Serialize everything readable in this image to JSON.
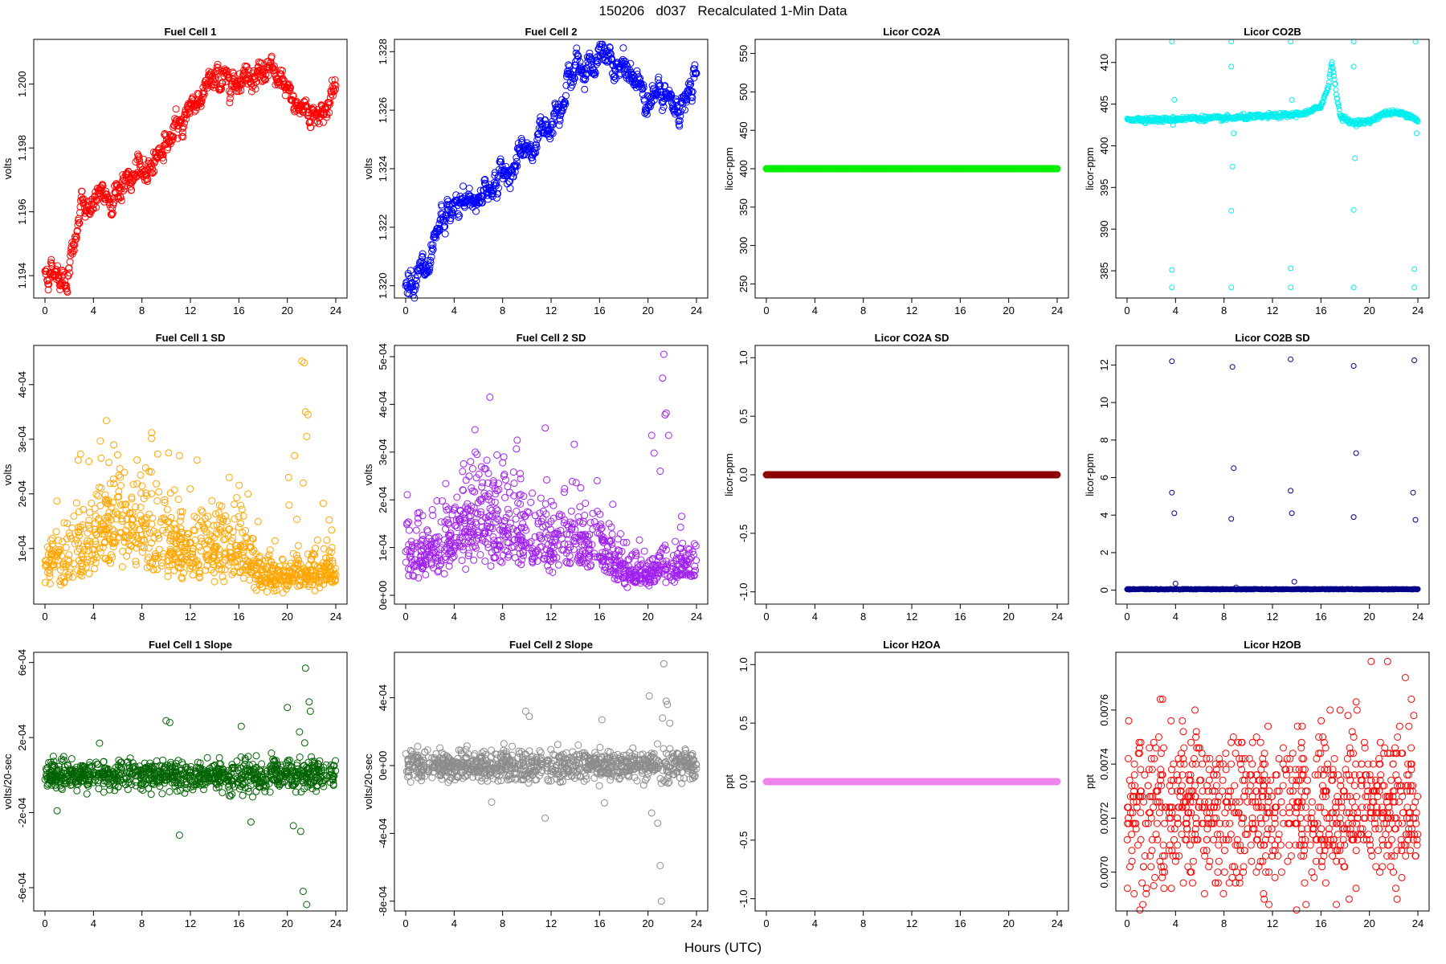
{
  "title": "150206   d037   Recalculated 1-Min Data",
  "x_caption": "Hours (UTC)",
  "chart_data": [
    {
      "id": "fc1",
      "type": "scatter",
      "title": "Fuel Cell 1",
      "ylabel": "volts",
      "color": "#ff0000",
      "xlim": [
        0,
        24
      ],
      "ylim": [
        1.1935,
        1.2012
      ],
      "xticks": [
        "0",
        "4",
        "8",
        "12",
        "16",
        "20",
        "24"
      ],
      "yticks": [
        "1.194",
        "1.196",
        "1.198",
        "1.200"
      ],
      "gen": {
        "kind": "walk",
        "anchors": [
          [
            0,
            1.1941
          ],
          [
            1,
            1.1942
          ],
          [
            1.8,
            1.1939
          ],
          [
            2.5,
            1.195
          ],
          [
            3,
            1.1961
          ],
          [
            4,
            1.1963
          ],
          [
            5,
            1.1964
          ],
          [
            6,
            1.1967
          ],
          [
            8,
            1.1972
          ],
          [
            9,
            1.1977
          ],
          [
            10,
            1.1982
          ],
          [
            11,
            1.1985
          ],
          [
            12,
            1.1994
          ],
          [
            13,
            1.1997
          ],
          [
            14,
            1.2001
          ],
          [
            15,
            1.2002
          ],
          [
            16,
            1.2003
          ],
          [
            17,
            1.2004
          ],
          [
            18,
            1.2004
          ],
          [
            19,
            1.2002
          ],
          [
            20,
            1.1996
          ],
          [
            21,
            1.1993
          ],
          [
            22,
            1.1991
          ],
          [
            23,
            1.1992
          ],
          [
            24,
            1.1998
          ]
        ],
        "noise": 0.00025,
        "n": 700,
        "msize": 4
      }
    },
    {
      "id": "fc2",
      "type": "scatter",
      "title": "Fuel Cell 2",
      "ylabel": "volts",
      "color": "#0000ff",
      "xlim": [
        0,
        24
      ],
      "ylim": [
        1.3198,
        1.3282
      ],
      "xticks": [
        "0",
        "4",
        "8",
        "12",
        "16",
        "20",
        "24"
      ],
      "yticks": [
        "1.320",
        "1.322",
        "1.324",
        "1.326",
        "1.328"
      ],
      "gen": {
        "kind": "walk",
        "anchors": [
          [
            0,
            1.3202
          ],
          [
            1,
            1.3205
          ],
          [
            2,
            1.3203
          ],
          [
            3,
            1.3221
          ],
          [
            4,
            1.3226
          ],
          [
            5,
            1.3228
          ],
          [
            6,
            1.3231
          ],
          [
            7,
            1.3234
          ],
          [
            8,
            1.3238
          ],
          [
            9,
            1.3241
          ],
          [
            10,
            1.3246
          ],
          [
            11,
            1.325
          ],
          [
            12,
            1.3258
          ],
          [
            13,
            1.3268
          ],
          [
            14,
            1.3274
          ],
          [
            15,
            1.3276
          ],
          [
            16,
            1.3277
          ],
          [
            17,
            1.3276
          ],
          [
            18,
            1.3273
          ],
          [
            19,
            1.327
          ],
          [
            20,
            1.3266
          ],
          [
            21,
            1.3264
          ],
          [
            22,
            1.3261
          ],
          [
            23,
            1.3262
          ],
          [
            24,
            1.327
          ]
        ],
        "noise": 0.0003,
        "n": 700,
        "msize": 4
      }
    },
    {
      "id": "co2a",
      "type": "scatter",
      "title": "Licor CO2A",
      "ylabel": "licor-ppm",
      "color": "#00ee00",
      "xlim": [
        0,
        24
      ],
      "ylim": [
        240,
        560
      ],
      "xticks": [
        "0",
        "4",
        "8",
        "12",
        "16",
        "20",
        "24"
      ],
      "yticks": [
        "250",
        "300",
        "350",
        "400",
        "450",
        "500",
        "550"
      ],
      "gen": {
        "kind": "flat",
        "value": 400,
        "n": 400,
        "msize": 4
      }
    },
    {
      "id": "co2b",
      "type": "scatter",
      "title": "Licor CO2B",
      "ylabel": "licor-ppm",
      "color": "#00eeee",
      "xlim": [
        0,
        24
      ],
      "ylim": [
        382.5,
        412
      ],
      "xticks": [
        "0",
        "4",
        "8",
        "12",
        "16",
        "20",
        "24"
      ],
      "yticks": [
        "385",
        "390",
        "395",
        "400",
        "405",
        "410"
      ],
      "gen": {
        "kind": "co2b",
        "anchors": [
          [
            0,
            403.2
          ],
          [
            3,
            403.1
          ],
          [
            5,
            403.3
          ],
          [
            8,
            403.3
          ],
          [
            12,
            403.6
          ],
          [
            13.5,
            403.7
          ],
          [
            15,
            404.0
          ],
          [
            16,
            404.8
          ],
          [
            16.6,
            407
          ],
          [
            16.9,
            410.2
          ],
          [
            17.2,
            407
          ],
          [
            17.6,
            403.5
          ],
          [
            18.5,
            402.8
          ],
          [
            20,
            402.9
          ],
          [
            21,
            403.8
          ],
          [
            22,
            404.0
          ],
          [
            23,
            403.8
          ],
          [
            23.5,
            403.5
          ],
          [
            24,
            403
          ]
        ],
        "noise": 0.15,
        "n": 600,
        "msize": 3,
        "outliers": [
          [
            3.7,
            412.5
          ],
          [
            3.7,
            385.1
          ],
          [
            3.7,
            383.0
          ],
          [
            3.9,
            405.5
          ],
          [
            3.8,
            402.5
          ],
          [
            8.6,
            412.5
          ],
          [
            8.6,
            409.5
          ],
          [
            8.7,
            397.5
          ],
          [
            8.6,
            392.2
          ],
          [
            8.6,
            383.0
          ],
          [
            8.8,
            401.5
          ],
          [
            13.5,
            412.5
          ],
          [
            13.5,
            385.3
          ],
          [
            13.5,
            383.0
          ],
          [
            13.6,
            405.5
          ],
          [
            18.7,
            412.5
          ],
          [
            18.7,
            409.5
          ],
          [
            18.8,
            398.5
          ],
          [
            18.7,
            392.3
          ],
          [
            18.7,
            383.0
          ],
          [
            23.8,
            412.5
          ],
          [
            23.7,
            385.2
          ],
          [
            23.7,
            383.0
          ],
          [
            23.9,
            401.5
          ]
        ]
      }
    },
    {
      "id": "fc1sd",
      "type": "scatter",
      "title": "Fuel Cell 1 SD",
      "ylabel": "volts",
      "color": "#ffa500",
      "xlim": [
        0,
        24
      ],
      "ylim": [
        1e-05,
        0.00046
      ],
      "xticks": [
        "0",
        "4",
        "8",
        "12",
        "16",
        "20",
        "24"
      ],
      "yticks": [
        "1e-04",
        "2e-04",
        "3e-04",
        "4e-04"
      ],
      "gen": {
        "kind": "sd",
        "anchors": [
          [
            0,
            7.5e-05
          ],
          [
            2,
            8e-05
          ],
          [
            4,
            0.00012
          ],
          [
            6,
            0.00015
          ],
          [
            8,
            0.000135
          ],
          [
            10,
            0.00011
          ],
          [
            12,
            0.0001
          ],
          [
            14,
            0.0001
          ],
          [
            16,
            0.0001
          ],
          [
            17,
            8e-05
          ],
          [
            18,
            5e-05
          ],
          [
            20,
            4.5e-05
          ],
          [
            21,
            6e-05
          ],
          [
            22,
            5.5e-05
          ],
          [
            24,
            6e-05
          ]
        ],
        "spread": 0.35,
        "n": 900,
        "msize": 4,
        "outliers": [
          [
            21.2,
            0.000443
          ],
          [
            21.4,
            0.00044
          ],
          [
            21.5,
            0.00035
          ],
          [
            21.7,
            0.000345
          ],
          [
            21.6,
            0.000305
          ],
          [
            8.8,
            0.000312
          ],
          [
            9.3,
            0.000273
          ],
          [
            10.2,
            0.000275
          ],
          [
            11.1,
            0.00027
          ],
          [
            7.6,
            0.000262
          ],
          [
            20.1,
            0.00023
          ],
          [
            20.6,
            0.00027
          ],
          [
            21.3,
            0.00022
          ],
          [
            15.2,
            0.00023
          ],
          [
            6.1,
            0.000234
          ]
        ]
      }
    },
    {
      "id": "fc2sd",
      "type": "scatter",
      "title": "Fuel Cell 2 SD",
      "ylabel": "volts",
      "color": "#a020f0",
      "xlim": [
        0,
        24
      ],
      "ylim": [
        -5e-06,
        0.00051
      ],
      "xticks": [
        "0",
        "4",
        "8",
        "12",
        "16",
        "20",
        "24"
      ],
      "yticks": [
        "0e+00",
        "1e-04",
        "2e-04",
        "3e-04",
        "4e-04",
        "5e-04"
      ],
      "gen": {
        "kind": "sd",
        "anchors": [
          [
            0,
            9e-05
          ],
          [
            2,
            9e-05
          ],
          [
            4,
            0.00013
          ],
          [
            6,
            0.00017
          ],
          [
            8,
            0.00015
          ],
          [
            10,
            0.00013
          ],
          [
            12,
            0.00011
          ],
          [
            14,
            0.00011
          ],
          [
            16,
            0.00011
          ],
          [
            17,
            8e-05
          ],
          [
            18,
            5e-05
          ],
          [
            20,
            4e-05
          ],
          [
            21,
            6e-05
          ],
          [
            22,
            6e-05
          ],
          [
            24,
            7e-05
          ]
        ],
        "spread": 0.35,
        "n": 900,
        "msize": 4,
        "outliers": [
          [
            21.3,
            0.000505
          ],
          [
            21.2,
            0.000455
          ],
          [
            21.5,
            0.000382
          ],
          [
            21.4,
            0.000378
          ],
          [
            21.7,
            0.000335
          ],
          [
            9.2,
            0.000325
          ],
          [
            8.1,
            0.00029
          ],
          [
            20.3,
            0.000335
          ],
          [
            20.5,
            0.000298
          ],
          [
            21.0,
            0.00026
          ],
          [
            6.7,
            0.000283
          ],
          [
            15.8,
            0.00024
          ]
        ]
      }
    },
    {
      "id": "co2asd",
      "type": "scatter",
      "title": "Licor CO2A SD",
      "ylabel": "licor-ppm",
      "color": "#8b0000",
      "xlim": [
        0,
        24
      ],
      "ylim": [
        -1.05,
        1.05
      ],
      "xticks": [
        "0",
        "4",
        "8",
        "12",
        "16",
        "20",
        "24"
      ],
      "yticks": [
        "-1.0",
        "-0.5",
        "0.0",
        "0.5",
        "1.0"
      ],
      "gen": {
        "kind": "flat",
        "value": 0,
        "n": 400,
        "msize": 4
      }
    },
    {
      "id": "co2bsd",
      "type": "scatter",
      "title": "Licor CO2B SD",
      "ylabel": "licor-ppm",
      "color": "#00008b",
      "xlim": [
        0,
        24
      ],
      "ylim": [
        -0.4,
        12.7
      ],
      "xticks": [
        "0",
        "4",
        "8",
        "12",
        "16",
        "20",
        "24"
      ],
      "yticks": [
        "0",
        "2",
        "4",
        "6",
        "8",
        "10",
        "12"
      ],
      "gen": {
        "kind": "flat",
        "value": 0.05,
        "jitter": 0.04,
        "n": 500,
        "msize": 3,
        "outliers": [
          [
            3.7,
            12.2
          ],
          [
            3.7,
            5.2
          ],
          [
            3.9,
            4.1
          ],
          [
            4.0,
            0.35
          ],
          [
            8.7,
            11.9
          ],
          [
            8.8,
            6.5
          ],
          [
            8.6,
            3.8
          ],
          [
            9.0,
            0.15
          ],
          [
            13.5,
            12.3
          ],
          [
            13.5,
            5.3
          ],
          [
            13.6,
            4.1
          ],
          [
            13.8,
            0.45
          ],
          [
            18.7,
            11.95
          ],
          [
            18.9,
            7.3
          ],
          [
            18.7,
            3.9
          ],
          [
            23.7,
            12.25
          ],
          [
            23.6,
            5.2
          ],
          [
            23.8,
            3.75
          ]
        ]
      }
    },
    {
      "id": "fc1slope",
      "type": "scatter",
      "title": "Fuel Cell 1 Slope",
      "ylabel": "volts/20-sec",
      "color": "#006400",
      "xlim": [
        0,
        24
      ],
      "ylim": [
        -0.00069,
        0.00062
      ],
      "xticks": [
        "0",
        "4",
        "8",
        "12",
        "16",
        "20",
        "24"
      ],
      "yticks": [
        "-6e-04",
        "-2e-04",
        "2e-04",
        "6e-04"
      ],
      "gen": {
        "kind": "noise",
        "center": 0,
        "sd": 4e-05,
        "n": 900,
        "msize": 4,
        "outliers": [
          [
            21.5,
            0.00057
          ],
          [
            21.8,
            0.00039
          ],
          [
            20.0,
            0.00036
          ],
          [
            21.9,
            0.00034
          ],
          [
            21.3,
            -0.00062
          ],
          [
            21.6,
            -0.00069
          ],
          [
            11.1,
            -0.00032
          ],
          [
            10.0,
            0.00029
          ],
          [
            10.3,
            0.00028
          ],
          [
            16.2,
            0.00026
          ],
          [
            1.0,
            -0.00019
          ],
          [
            17.0,
            -0.00025
          ],
          [
            20.5,
            -0.00027
          ],
          [
            21.1,
            -0.0003
          ],
          [
            4.5,
            0.00017
          ],
          [
            21.0,
            0.00023
          ]
        ]
      }
    },
    {
      "id": "fc2slope",
      "type": "scatter",
      "title": "Fuel Cell 2 Slope",
      "ylabel": "volts/20-sec",
      "color": "#8c8c8c",
      "xlim": [
        0,
        24
      ],
      "ylim": [
        -0.00082,
        0.00063
      ],
      "xticks": [
        "0",
        "4",
        "8",
        "12",
        "16",
        "20",
        "24"
      ],
      "yticks": [
        "-8e-04",
        "-4e-04",
        "0e+00",
        "4e-04"
      ],
      "gen": {
        "kind": "noise",
        "center": 0,
        "sd": 4.5e-05,
        "n": 900,
        "msize": 4,
        "outliers": [
          [
            21.3,
            0.0006
          ],
          [
            21.1,
            -0.0008
          ],
          [
            21.0,
            -0.00059
          ],
          [
            20.1,
            0.00041
          ],
          [
            21.5,
            0.00038
          ],
          [
            21.6,
            0.00036
          ],
          [
            9.9,
            0.00032
          ],
          [
            10.2,
            0.00029
          ],
          [
            11.5,
            -0.00031
          ],
          [
            16.4,
            -0.00022
          ],
          [
            16.2,
            0.00027
          ],
          [
            20.3,
            -0.00028
          ],
          [
            20.8,
            -0.00034
          ],
          [
            21.2,
            0.00028
          ],
          [
            21.8,
            0.00025
          ]
        ]
      }
    },
    {
      "id": "h2oa",
      "type": "scatter",
      "title": "Licor H2OA",
      "ylabel": "ppt",
      "color": "#ee82ee",
      "xlim": [
        0,
        24
      ],
      "ylim": [
        -1.05,
        1.05
      ],
      "xticks": [
        "0",
        "4",
        "8",
        "12",
        "16",
        "20",
        "24"
      ],
      "yticks": [
        "-1.0",
        "-0.5",
        "0.0",
        "0.5",
        "1.0"
      ],
      "gen": {
        "kind": "flat",
        "value": 0,
        "n": 400,
        "msize": 4
      }
    },
    {
      "id": "h2ob",
      "type": "scatter",
      "title": "Licor H2OB",
      "ylabel": "ppt",
      "color": "#ff0000",
      "xlim": [
        0,
        24
      ],
      "ylim": [
        0.00688,
        0.00779
      ],
      "xticks": [
        "0",
        "4",
        "8",
        "12",
        "16",
        "20",
        "24"
      ],
      "yticks": [
        "0.0070",
        "0.0072",
        "0.0074",
        "0.0076"
      ],
      "gen": {
        "kind": "quant",
        "center": 0.00722,
        "step": 2e-05,
        "sd": 0.00014,
        "drift": 4e-05,
        "n": 900,
        "msize": 4,
        "outliers": [
          [
            21.5,
            0.00778
          ],
          [
            18.9,
            0.00763
          ],
          [
            11.7,
            0.00688
          ],
          [
            2.2,
            0.00695
          ],
          [
            5.6,
            0.0076
          ]
        ]
      }
    }
  ]
}
